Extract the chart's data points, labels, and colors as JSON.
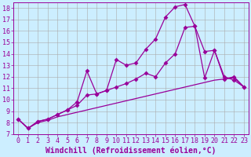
{
  "xlabel": "Windchill (Refroidissement éolien,°C)",
  "background_color": "#cceeff",
  "grid_color": "#aaaaaa",
  "line_color": "#990099",
  "xlim": [
    -0.5,
    23.5
  ],
  "ylim": [
    7,
    18.5
  ],
  "xticks": [
    0,
    1,
    2,
    3,
    4,
    5,
    6,
    7,
    8,
    9,
    10,
    11,
    12,
    13,
    14,
    15,
    16,
    17,
    18,
    19,
    20,
    21,
    22,
    23
  ],
  "yticks": [
    7,
    8,
    9,
    10,
    11,
    12,
    13,
    14,
    15,
    16,
    17,
    18
  ],
  "curve_straight_x": [
    0,
    1,
    2,
    3,
    4,
    5,
    6,
    7,
    8,
    9,
    10,
    11,
    12,
    13,
    14,
    15,
    16,
    17,
    18,
    19,
    20,
    21,
    22,
    23
  ],
  "curve_straight_y": [
    8.3,
    7.5,
    8.0,
    8.2,
    8.5,
    8.7,
    8.9,
    9.1,
    9.3,
    9.5,
    9.7,
    9.9,
    10.1,
    10.3,
    10.5,
    10.7,
    10.9,
    11.1,
    11.3,
    11.5,
    11.7,
    11.8,
    11.9,
    11.1
  ],
  "curve_mid_x": [
    0,
    1,
    2,
    3,
    4,
    5,
    6,
    7,
    8,
    9,
    10,
    11,
    12,
    13,
    14,
    15,
    16,
    17,
    18,
    19,
    20,
    21,
    22,
    23
  ],
  "curve_mid_y": [
    8.3,
    7.5,
    8.1,
    8.3,
    8.7,
    9.1,
    9.5,
    10.4,
    10.5,
    10.8,
    11.1,
    11.4,
    11.8,
    12.3,
    12.0,
    13.2,
    14.0,
    16.3,
    16.4,
    14.2,
    14.3,
    11.8,
    12.0,
    11.1
  ],
  "curve_top_x": [
    0,
    1,
    2,
    3,
    4,
    5,
    6,
    7,
    8,
    9,
    10,
    11,
    12,
    13,
    14,
    15,
    16,
    17,
    18,
    19,
    20,
    21,
    22,
    23
  ],
  "curve_top_y": [
    8.3,
    7.5,
    8.1,
    8.3,
    8.7,
    9.1,
    9.8,
    12.5,
    10.5,
    10.8,
    13.5,
    13.0,
    13.2,
    14.4,
    15.3,
    17.2,
    18.1,
    18.3,
    16.4,
    11.9,
    14.3,
    12.0,
    11.7,
    11.1
  ],
  "tick_fontsize": 6,
  "xlabel_fontsize": 7,
  "tick_color": "#990099",
  "axis_color": "#990099",
  "marker_size": 3,
  "linewidth": 0.9
}
